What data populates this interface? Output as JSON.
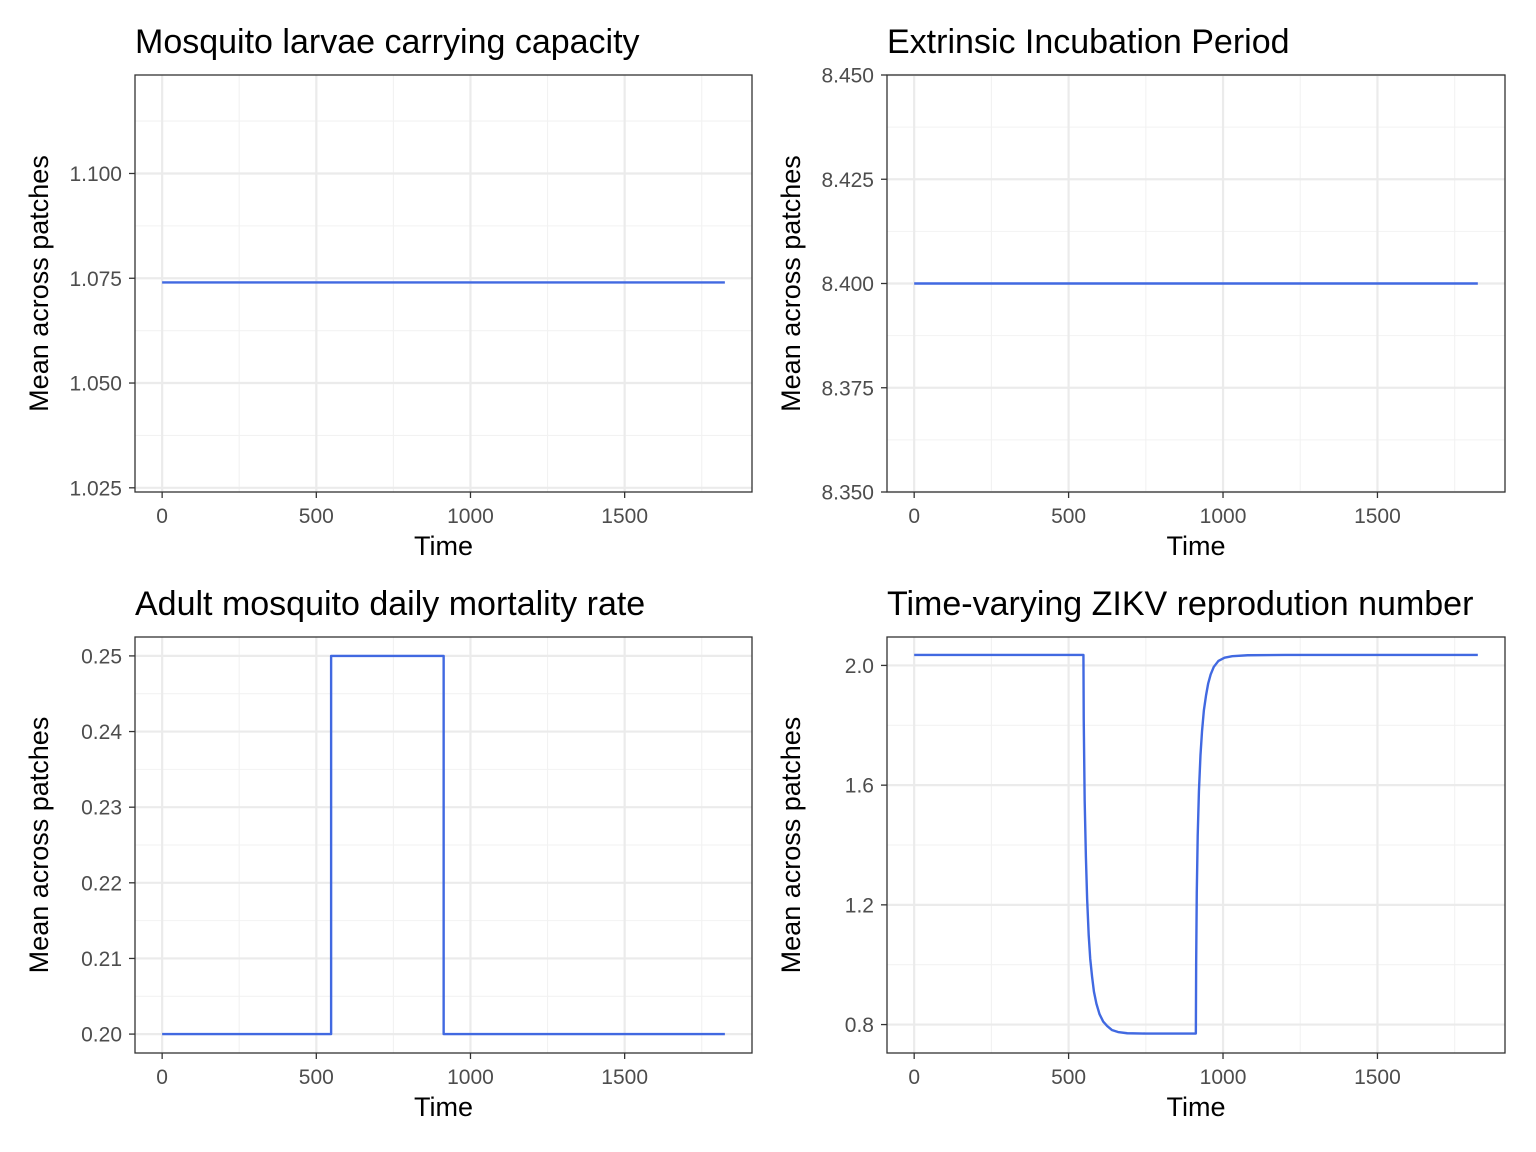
{
  "chart_data": [
    {
      "type": "line",
      "title": "Mosquito larvae carrying capacity",
      "xlabel": "Time",
      "ylabel": "Mean across patches",
      "xlim": [
        -88,
        1913
      ],
      "ylim": [
        1.024,
        1.1235
      ],
      "x_ticks": [
        0,
        500,
        1000,
        1500
      ],
      "x_tick_labels": [
        "0",
        "500",
        "1000",
        "1500"
      ],
      "y_ticks": [
        1.025,
        1.05,
        1.075,
        1.1
      ],
      "y_tick_labels": [
        "1.025",
        "1.050",
        "1.075",
        "1.100"
      ],
      "grid": true,
      "series": [
        {
          "x": [
            0,
            1825
          ],
          "y": [
            1.074,
            1.074
          ]
        }
      ]
    },
    {
      "type": "line",
      "title": "Extrinsic Incubation Period",
      "xlabel": "Time",
      "ylabel": "Mean across patches",
      "xlim": [
        -88,
        1913
      ],
      "ylim": [
        8.35,
        8.45
      ],
      "x_ticks": [
        0,
        500,
        1000,
        1500
      ],
      "x_tick_labels": [
        "0",
        "500",
        "1000",
        "1500"
      ],
      "y_ticks": [
        8.35,
        8.375,
        8.4,
        8.425,
        8.45
      ],
      "y_tick_labels": [
        "8.350",
        "8.375",
        "8.400",
        "8.425",
        "8.450"
      ],
      "grid": true,
      "series": [
        {
          "x": [
            0,
            1825
          ],
          "y": [
            8.4,
            8.4
          ]
        }
      ]
    },
    {
      "type": "line",
      "title": "Adult mosquito daily mortality rate",
      "xlabel": "Time",
      "ylabel": "Mean across patches",
      "xlim": [
        -88,
        1913
      ],
      "ylim": [
        0.1975,
        0.2525
      ],
      "x_ticks": [
        0,
        500,
        1000,
        1500
      ],
      "x_tick_labels": [
        "0",
        "500",
        "1000",
        "1500"
      ],
      "y_ticks": [
        0.2,
        0.21,
        0.22,
        0.23,
        0.24,
        0.25
      ],
      "y_tick_labels": [
        "0.20",
        "0.21",
        "0.22",
        "0.23",
        "0.24",
        "0.25"
      ],
      "grid": true,
      "series": [
        {
          "x": [
            0,
            548,
            548,
            913,
            913,
            1825
          ],
          "y": [
            0.2,
            0.2,
            0.25,
            0.25,
            0.2,
            0.2
          ]
        }
      ]
    },
    {
      "type": "line",
      "title": "Time-varying ZIKV reprodution number",
      "xlabel": "Time",
      "ylabel": "Mean across patches",
      "xlim": [
        -88,
        1913
      ],
      "ylim": [
        0.705,
        2.095
      ],
      "x_ticks": [
        0,
        500,
        1000,
        1500
      ],
      "x_tick_labels": [
        "0",
        "500",
        "1000",
        "1500"
      ],
      "y_ticks": [
        0.8,
        1.2,
        1.6,
        2.0
      ],
      "y_tick_labels": [
        "0.8",
        "1.2",
        "1.6",
        "2.0"
      ],
      "grid": true,
      "series": [
        {
          "x": [
            0,
            548,
            549,
            552,
            556,
            560,
            565,
            570,
            576,
            582,
            590,
            600,
            612,
            625,
            640,
            660,
            690,
            750,
            850,
            912,
            913,
            915,
            918,
            922,
            927,
            932,
            938,
            945,
            952,
            960,
            970,
            985,
            1005,
            1030,
            1080,
            1200,
            1825
          ],
          "y": [
            2.035,
            2.035,
            1.82,
            1.55,
            1.36,
            1.22,
            1.1,
            1.02,
            0.96,
            0.91,
            0.87,
            0.835,
            0.81,
            0.795,
            0.782,
            0.775,
            0.771,
            0.77,
            0.77,
            0.77,
            1.0,
            1.24,
            1.43,
            1.58,
            1.7,
            1.78,
            1.85,
            1.9,
            1.94,
            1.97,
            1.995,
            2.015,
            2.026,
            2.031,
            2.034,
            2.035,
            2.035
          ]
        }
      ]
    }
  ],
  "colors": {
    "line": "#4169E1"
  }
}
